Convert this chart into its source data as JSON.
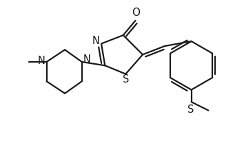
{
  "background": "#ffffff",
  "line_color": "#1a1a1a",
  "line_width": 1.6,
  "fig_width": 3.54,
  "fig_height": 2.4,
  "dpi": 100,
  "xlim": [
    0,
    10
  ],
  "ylim": [
    0,
    6.8
  ]
}
